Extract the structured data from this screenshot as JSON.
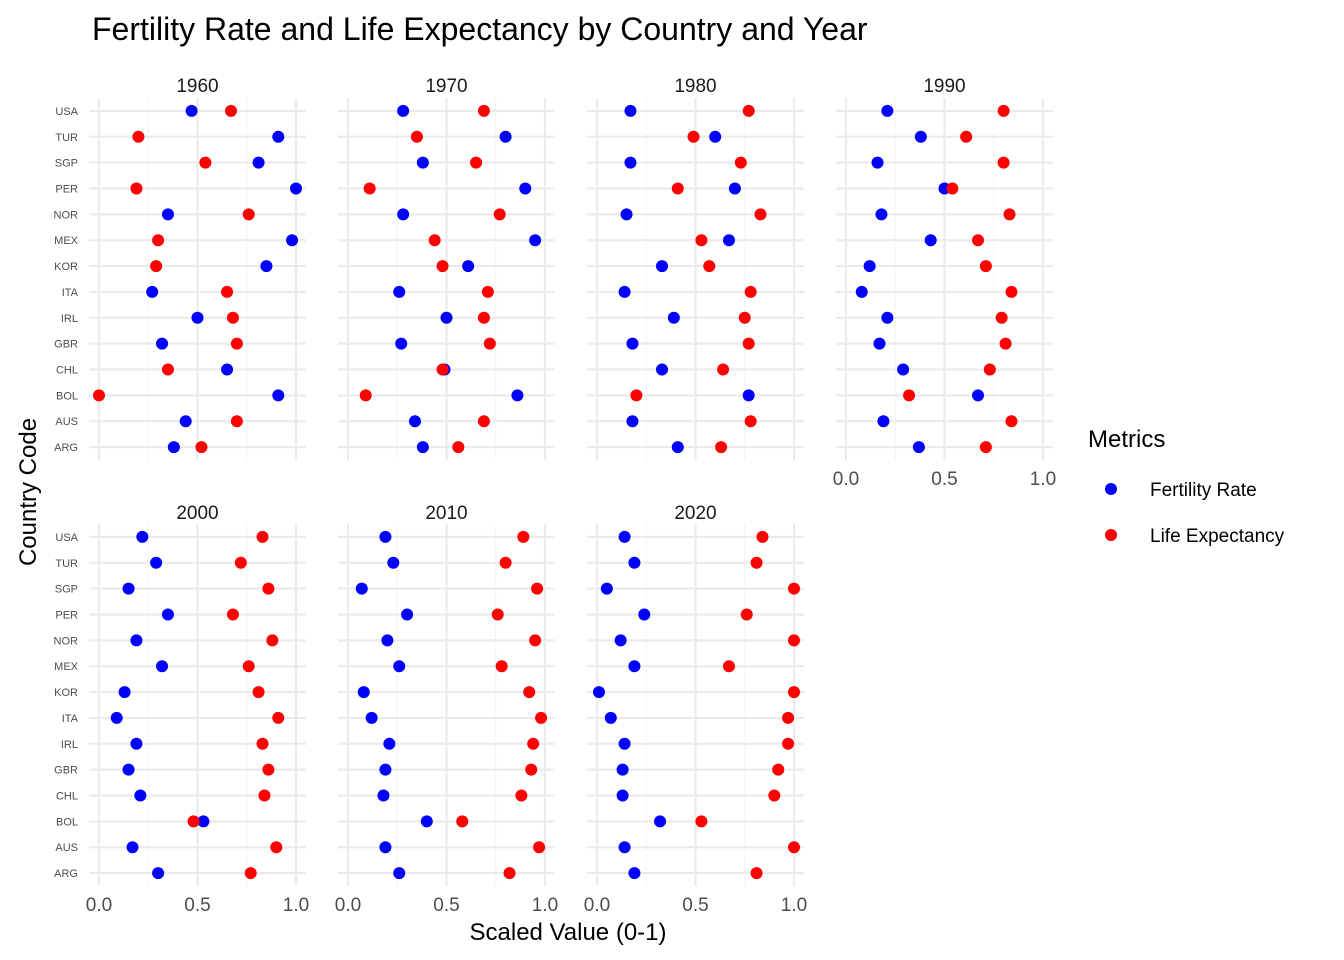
{
  "chart_data": {
    "type": "scatter",
    "title": "Fertility Rate and Life Expectancy by Country and Year",
    "xlabel": "Scaled Value (0-1)",
    "ylabel": "Country Code",
    "xlim": [
      0,
      1
    ],
    "x_ticks": [
      "0.0",
      "0.5",
      "1.0"
    ],
    "grid": true,
    "legend": {
      "title": "Metrics",
      "position": "right",
      "items": [
        {
          "label": "Fertility Rate",
          "color": "#0000ff"
        },
        {
          "label": "Life Expectancy",
          "color": "#ff0000"
        }
      ]
    },
    "categories": [
      "ARG",
      "AUS",
      "BOL",
      "CHL",
      "GBR",
      "IRL",
      "ITA",
      "KOR",
      "MEX",
      "NOR",
      "PER",
      "SGP",
      "TUR",
      "USA"
    ],
    "facets": [
      {
        "year": "1960",
        "fertility": [
          0.38,
          0.44,
          0.91,
          0.65,
          0.32,
          0.5,
          0.27,
          0.85,
          0.98,
          0.35,
          1.0,
          0.81,
          0.91,
          0.47
        ],
        "life_expectancy": [
          0.52,
          0.7,
          0.0,
          0.35,
          0.7,
          0.68,
          0.65,
          0.29,
          0.3,
          0.76,
          0.19,
          0.54,
          0.2,
          0.67
        ]
      },
      {
        "year": "1970",
        "fertility": [
          0.38,
          0.34,
          0.86,
          0.49,
          0.27,
          0.5,
          0.26,
          0.61,
          0.95,
          0.28,
          0.9,
          0.38,
          0.8,
          0.28
        ],
        "life_expectancy": [
          0.56,
          0.69,
          0.09,
          0.48,
          0.72,
          0.69,
          0.71,
          0.48,
          0.44,
          0.77,
          0.11,
          0.65,
          0.35,
          0.69
        ]
      },
      {
        "year": "1980",
        "fertility": [
          0.41,
          0.18,
          0.77,
          0.33,
          0.18,
          0.39,
          0.14,
          0.33,
          0.67,
          0.15,
          0.7,
          0.17,
          0.6,
          0.17
        ],
        "life_expectancy": [
          0.63,
          0.78,
          0.2,
          0.64,
          0.77,
          0.75,
          0.78,
          0.57,
          0.53,
          0.83,
          0.41,
          0.73,
          0.49,
          0.77
        ]
      },
      {
        "year": "1990",
        "fertility": [
          0.37,
          0.19,
          0.67,
          0.29,
          0.17,
          0.21,
          0.08,
          0.12,
          0.43,
          0.18,
          0.5,
          0.16,
          0.38,
          0.21
        ],
        "life_expectancy": [
          0.71,
          0.84,
          0.32,
          0.73,
          0.81,
          0.79,
          0.84,
          0.71,
          0.67,
          0.83,
          0.54,
          0.8,
          0.61,
          0.8
        ]
      },
      {
        "year": "2000",
        "fertility": [
          0.3,
          0.17,
          0.53,
          0.21,
          0.15,
          0.19,
          0.09,
          0.13,
          0.32,
          0.19,
          0.35,
          0.15,
          0.29,
          0.22
        ],
        "life_expectancy": [
          0.77,
          0.9,
          0.48,
          0.84,
          0.86,
          0.83,
          0.91,
          0.81,
          0.76,
          0.88,
          0.68,
          0.86,
          0.72,
          0.83
        ]
      },
      {
        "year": "2010",
        "fertility": [
          0.26,
          0.19,
          0.4,
          0.18,
          0.19,
          0.21,
          0.12,
          0.08,
          0.26,
          0.2,
          0.3,
          0.07,
          0.23,
          0.19
        ],
        "life_expectancy": [
          0.82,
          0.97,
          0.58,
          0.88,
          0.93,
          0.94,
          0.98,
          0.92,
          0.78,
          0.95,
          0.76,
          0.96,
          0.8,
          0.89
        ]
      },
      {
        "year": "2020",
        "fertility": [
          0.19,
          0.14,
          0.32,
          0.13,
          0.13,
          0.14,
          0.07,
          0.01,
          0.19,
          0.12,
          0.24,
          0.05,
          0.19,
          0.14
        ],
        "life_expectancy": [
          0.81,
          1.0,
          0.53,
          0.9,
          0.92,
          0.97,
          0.97,
          1.0,
          0.67,
          1.0,
          0.76,
          1.0,
          0.81,
          0.84
        ]
      }
    ]
  }
}
